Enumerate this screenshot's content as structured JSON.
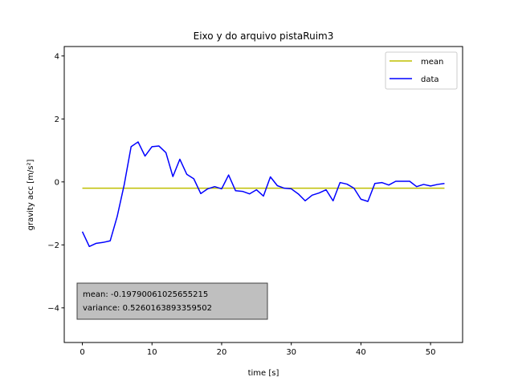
{
  "chart_data": {
    "type": "line",
    "title": "Eixo y do arquivo pistaRuim3",
    "xlabel": "time [s]",
    "ylabel": "gravity acc [m/s²]",
    "xlim": [
      -2.6,
      54.6
    ],
    "ylim": [
      -5.1,
      4.3
    ],
    "xticks": [
      0,
      10,
      20,
      30,
      40,
      50
    ],
    "yticks": [
      -4,
      -2,
      0,
      2,
      4
    ],
    "grid": false,
    "legend_position": "top-right",
    "series": [
      {
        "name": "mean",
        "color": "#bfbf00",
        "x": [
          0,
          52
        ],
        "y": [
          -0.1979,
          -0.1979
        ]
      },
      {
        "name": "data",
        "color": "#0000ff",
        "x": [
          0,
          1,
          2,
          3,
          4,
          5,
          6,
          7,
          8,
          9,
          10,
          11,
          12,
          13,
          14,
          15,
          16,
          17,
          18,
          19,
          20,
          21,
          22,
          23,
          24,
          25,
          26,
          27,
          28,
          29,
          30,
          31,
          32,
          33,
          34,
          35,
          36,
          37,
          38,
          39,
          40,
          41,
          42,
          43,
          44,
          45,
          46,
          47,
          48,
          49,
          50,
          51,
          52
        ],
        "y": [
          -1.58,
          -2.05,
          -1.95,
          -1.92,
          -1.87,
          -1.1,
          -0.1,
          1.12,
          1.27,
          0.82,
          1.12,
          1.14,
          0.93,
          0.17,
          0.72,
          0.24,
          0.1,
          -0.37,
          -0.22,
          -0.15,
          -0.22,
          0.22,
          -0.28,
          -0.3,
          -0.38,
          -0.25,
          -0.45,
          0.16,
          -0.12,
          -0.2,
          -0.22,
          -0.38,
          -0.6,
          -0.42,
          -0.35,
          -0.25,
          -0.6,
          -0.02,
          -0.07,
          -0.2,
          -0.55,
          -0.62,
          -0.05,
          -0.02,
          -0.1,
          0.02,
          0.02,
          0.02,
          -0.15,
          -0.08,
          -0.13,
          -0.08,
          -0.05
        ]
      }
    ],
    "annotation": {
      "mean_line": "mean: -0.19790061025655215",
      "variance_line": "variance: 0.5260163893359502"
    }
  }
}
